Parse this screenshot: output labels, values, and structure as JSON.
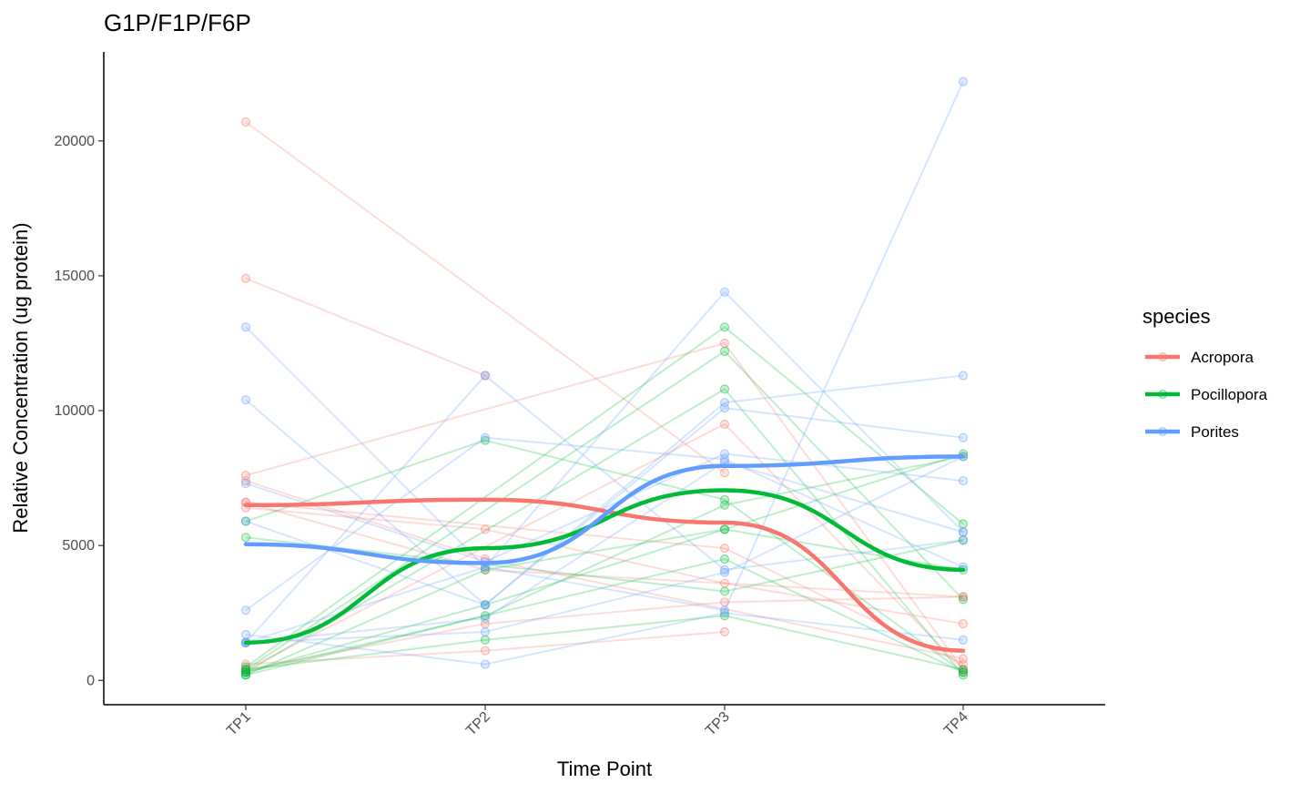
{
  "chart_data": {
    "type": "line",
    "title": "G1P/F1P/F6P",
    "xlabel": "Time Point",
    "ylabel": "Relative Concentration (ug protein)",
    "categories": [
      "TP1",
      "TP2",
      "TP3",
      "TP4"
    ],
    "ylim": [
      -900,
      23300
    ],
    "yticks": [
      0,
      5000,
      10000,
      15000,
      20000
    ],
    "grid": false,
    "legend": {
      "title": "species",
      "position": "right"
    },
    "colors": {
      "Acropora": "#F8766D",
      "Pocillopora": "#00BA38",
      "Porites": "#619CFF"
    },
    "series": [
      {
        "name": "Acropora",
        "smooth": [
          6500,
          6700,
          5850,
          1100
        ],
        "individuals": [
          [
            20700,
            null,
            7700,
            null
          ],
          [
            14900,
            11300,
            null,
            null
          ],
          [
            7600,
            null,
            12500,
            400
          ],
          [
            7400,
            4500,
            null,
            800
          ],
          [
            6600,
            4100,
            null,
            3100
          ],
          [
            6400,
            5600,
            3600,
            2100
          ],
          [
            6600,
            null,
            4900,
            600
          ],
          [
            400,
            null,
            9500,
            400
          ],
          [
            600,
            1100,
            1800,
            null
          ],
          [
            400,
            2100,
            2900,
            3100
          ]
        ]
      },
      {
        "name": "Pocillopora",
        "smooth": [
          1400,
          4900,
          7050,
          4100
        ],
        "individuals": [
          [
            5900,
            8900,
            6700,
            300
          ],
          [
            5300,
            null,
            3300,
            5200
          ],
          [
            500,
            null,
            13100,
            5800
          ],
          [
            400,
            null,
            12200,
            3000
          ],
          [
            300,
            null,
            10800,
            200
          ],
          [
            200,
            2400,
            6500,
            8300
          ],
          [
            300,
            null,
            4500,
            300
          ],
          [
            400,
            1500,
            2400,
            400
          ],
          [
            300,
            2800,
            5600,
            8400
          ],
          [
            200,
            4100,
            5600,
            4100
          ]
        ]
      },
      {
        "name": "Porites",
        "smooth": [
          5050,
          4350,
          7950,
          8300
        ],
        "individuals": [
          [
            13100,
            4200,
            2600,
            22200
          ],
          [
            10400,
            2800,
            10300,
            11300
          ],
          [
            7300,
            4400,
            8400,
            7400
          ],
          [
            5900,
            2800,
            10100,
            9000
          ],
          [
            1400,
            11300,
            4100,
            5200
          ],
          [
            1400,
            4200,
            14400,
            5500
          ],
          [
            2600,
            9000,
            8200,
            4200
          ],
          [
            1700,
            600,
            2500,
            1500
          ],
          [
            1400,
            1800,
            4000,
            8300
          ],
          [
            1400,
            2300,
            8100,
            5500
          ]
        ]
      }
    ]
  }
}
